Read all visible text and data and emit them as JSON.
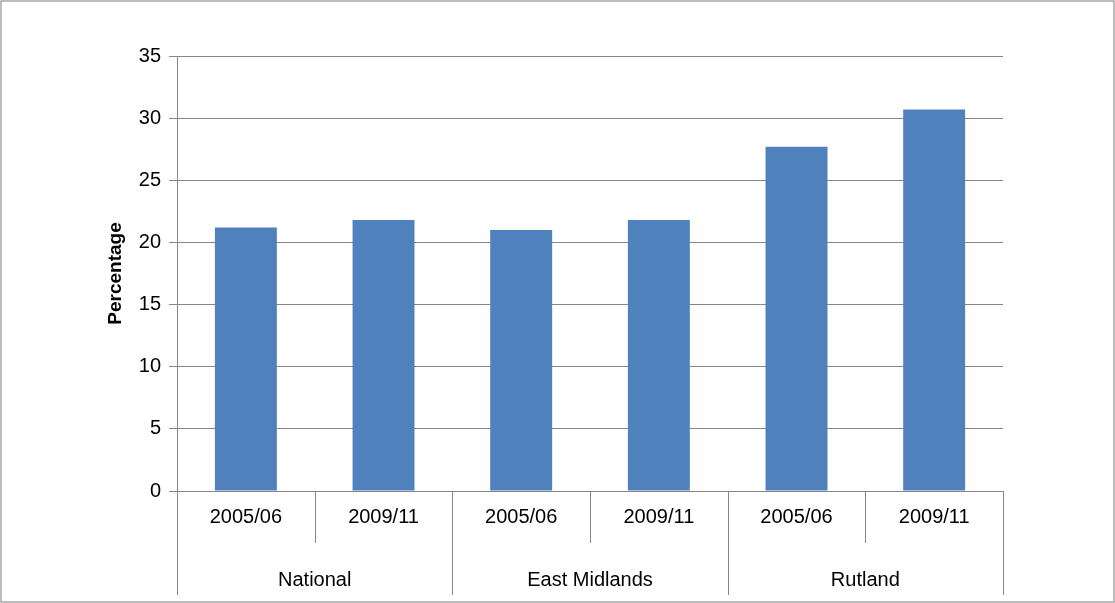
{
  "chart_data": {
    "type": "bar",
    "ylabel": "Percentage",
    "categories": [
      "2005/06",
      "2009/11",
      "2005/06",
      "2009/11",
      "2005/06",
      "2009/11"
    ],
    "values": [
      21.2,
      21.8,
      21.0,
      21.8,
      27.7,
      30.7
    ],
    "color": "#4f81bd",
    "ylim": [
      0,
      35
    ],
    "yticks": [
      0,
      5,
      10,
      15,
      20,
      25,
      30,
      35
    ],
    "grid": "y",
    "legend": false,
    "annotations": [
      "National",
      "East Midlands",
      "Rutland"
    ]
  }
}
